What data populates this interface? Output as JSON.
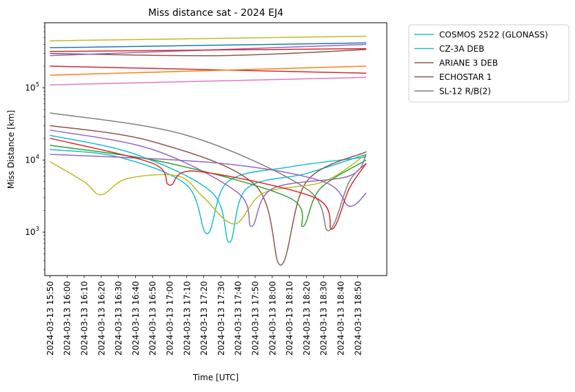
{
  "chart_data": {
    "type": "line",
    "title": "Miss distance sat - 2024 EJ4",
    "xlabel": "Time [UTC]",
    "ylabel": "Miss Distance [km]",
    "yscale": "log",
    "ylim": [
      250,
      800000
    ],
    "x_range": [
      "2024-03-13 15:47",
      "2024-03-13 19:07"
    ],
    "x_ticks": [
      "2024-03-13 15:50",
      "2024-03-13 16:00",
      "2024-03-13 16:10",
      "2024-03-13 16:20",
      "2024-03-13 16:30",
      "2024-03-13 16:40",
      "2024-03-13 16:50",
      "2024-03-13 17:00",
      "2024-03-13 17:10",
      "2024-03-13 17:20",
      "2024-03-13 17:30",
      "2024-03-13 17:40",
      "2024-03-13 17:50",
      "2024-03-13 18:00",
      "2024-03-13 18:10",
      "2024-03-13 18:20",
      "2024-03-13 18:30",
      "2024-03-13 18:40",
      "2024-03-13 18:50"
    ],
    "y_ticks": [
      {
        "value": 1000,
        "base": "10",
        "exp": "3"
      },
      {
        "value": 10000,
        "base": "10",
        "exp": "4"
      },
      {
        "value": 100000,
        "base": "10",
        "exp": "5"
      }
    ],
    "legend_position": "outside-right",
    "grid": false,
    "series": [
      {
        "name": "COSMOS 2522 (GLONASS)",
        "color": "#17becf",
        "values": [
          [
            0,
            14000
          ],
          [
            40,
            11000
          ],
          [
            80,
            4500
          ],
          [
            92,
            950
          ],
          [
            104,
            5000
          ],
          [
            140,
            8000
          ],
          [
            185,
            11000
          ]
        ]
      },
      {
        "name": "CZ-3A DEB",
        "color": "#17becf",
        "values": [
          [
            0,
            22000
          ],
          [
            50,
            12000
          ],
          [
            95,
            3500
          ],
          [
            105,
            720
          ],
          [
            115,
            4000
          ],
          [
            150,
            6500
          ],
          [
            185,
            12000
          ]
        ]
      },
      {
        "name": "ARIANE 3 DEB",
        "color": "#8c564b",
        "values": [
          [
            0,
            30000
          ],
          [
            60,
            18000
          ],
          [
            120,
            4500
          ],
          [
            135,
            350
          ],
          [
            150,
            5000
          ],
          [
            185,
            13000
          ]
        ]
      },
      {
        "name": "ECHOSTAR 1",
        "color": "#8c564b",
        "values": [
          [
            0,
            300000
          ],
          [
            100,
            280000
          ],
          [
            185,
            340000
          ]
        ]
      },
      {
        "name": "SL-12 R/B(2)",
        "color": "#7f7f7f",
        "values": [
          [
            0,
            45000
          ],
          [
            80,
            22000
          ],
          [
            150,
            4000
          ],
          [
            163,
            1050
          ],
          [
            175,
            5000
          ],
          [
            185,
            9000
          ]
        ]
      },
      {
        "color": "#bcbd22",
        "values": [
          [
            0,
            9500
          ],
          [
            20,
            5000
          ],
          [
            30,
            3300
          ],
          [
            45,
            5500
          ],
          [
            75,
            6000
          ],
          [
            90,
            3000
          ],
          [
            108,
            1300
          ],
          [
            125,
            3500
          ],
          [
            160,
            5000
          ],
          [
            185,
            12000
          ]
        ]
      },
      {
        "color": "#bcbd22",
        "values": [
          [
            0,
            450000
          ],
          [
            185,
            520000
          ]
        ]
      },
      {
        "color": "#2ca02c",
        "values": [
          [
            0,
            16000
          ],
          [
            70,
            9000
          ],
          [
            140,
            3000
          ],
          [
            148,
            1200
          ],
          [
            158,
            4000
          ],
          [
            185,
            10000
          ]
        ]
      },
      {
        "color": "#9467bd",
        "values": [
          [
            0,
            26000
          ],
          [
            60,
            14000
          ],
          [
            110,
            3500
          ],
          [
            118,
            1200
          ],
          [
            130,
            4000
          ],
          [
            175,
            6000
          ],
          [
            185,
            12000
          ]
        ]
      },
      {
        "color": "#9467bd",
        "values": [
          [
            0,
            12000
          ],
          [
            100,
            9000
          ],
          [
            160,
            5000
          ],
          [
            175,
            2300
          ],
          [
            185,
            3500
          ]
        ]
      },
      {
        "color": "#d62728",
        "values": [
          [
            0,
            20000
          ],
          [
            60,
            9000
          ],
          [
            70,
            4500
          ],
          [
            85,
            7000
          ],
          [
            155,
            3000
          ],
          [
            165,
            1100
          ],
          [
            175,
            4000
          ],
          [
            185,
            9000
          ]
        ]
      },
      {
        "color": "#1f77b4",
        "values": [
          [
            0,
            360000
          ],
          [
            185,
            420000
          ]
        ]
      },
      {
        "color": "#9467bd",
        "values": [
          [
            0,
            280000
          ],
          [
            185,
            400000
          ]
        ]
      },
      {
        "color": "#d62728",
        "values": [
          [
            0,
            320000
          ],
          [
            185,
            350000
          ]
        ]
      },
      {
        "color": "#d62728",
        "values": [
          [
            0,
            200000
          ],
          [
            185,
            160000
          ]
        ]
      },
      {
        "color": "#ff7f0e",
        "values": [
          [
            0,
            150000
          ],
          [
            185,
            200000
          ]
        ]
      },
      {
        "color": "#e377c2",
        "values": [
          [
            0,
            110000
          ],
          [
            185,
            140000
          ]
        ]
      }
    ]
  }
}
